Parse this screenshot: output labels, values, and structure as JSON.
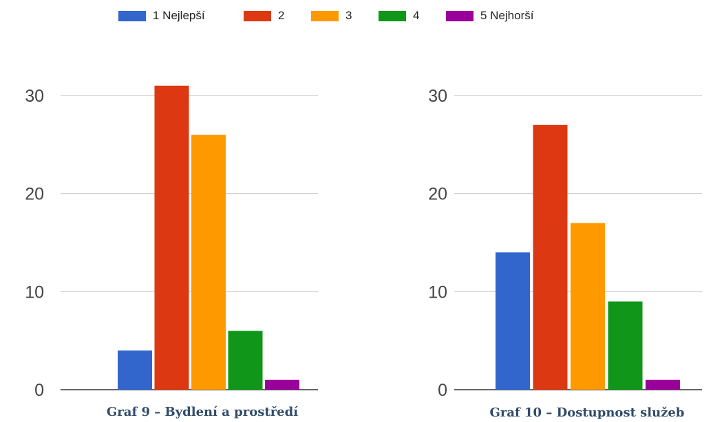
{
  "legend": {
    "items": [
      {
        "label": "1 Nejlepší",
        "color": "#3366cc"
      },
      {
        "label": "2",
        "color": "#dc3912"
      },
      {
        "label": "3",
        "color": "#ff9900"
      },
      {
        "label": "4",
        "color": "#109618"
      },
      {
        "label": "5 Nejhorší",
        "color": "#990099"
      }
    ]
  },
  "chart_data": [
    {
      "type": "bar",
      "title": "Graf 9 – Bydlení a prostředí",
      "categories": [
        "1 Nejlepší",
        "2",
        "3",
        "4",
        "5 Nejhorší"
      ],
      "values": [
        4,
        31,
        26,
        6,
        1
      ],
      "colors": [
        "#3366cc",
        "#dc3912",
        "#ff9900",
        "#109618",
        "#990099"
      ],
      "yticks": [
        "0",
        "10",
        "20",
        "30"
      ],
      "ylim": [
        0,
        30
      ],
      "grid": true
    },
    {
      "type": "bar",
      "title": "Graf 10 – Dostupnost služeb",
      "categories": [
        "1 Nejlepší",
        "2",
        "3",
        "4",
        "5 Nejhorší"
      ],
      "values": [
        14,
        27,
        17,
        9,
        1
      ],
      "colors": [
        "#3366cc",
        "#dc3912",
        "#ff9900",
        "#109618",
        "#990099"
      ],
      "yticks": [
        "0",
        "10",
        "20",
        "30"
      ],
      "ylim": [
        0,
        30
      ],
      "grid": true
    }
  ]
}
